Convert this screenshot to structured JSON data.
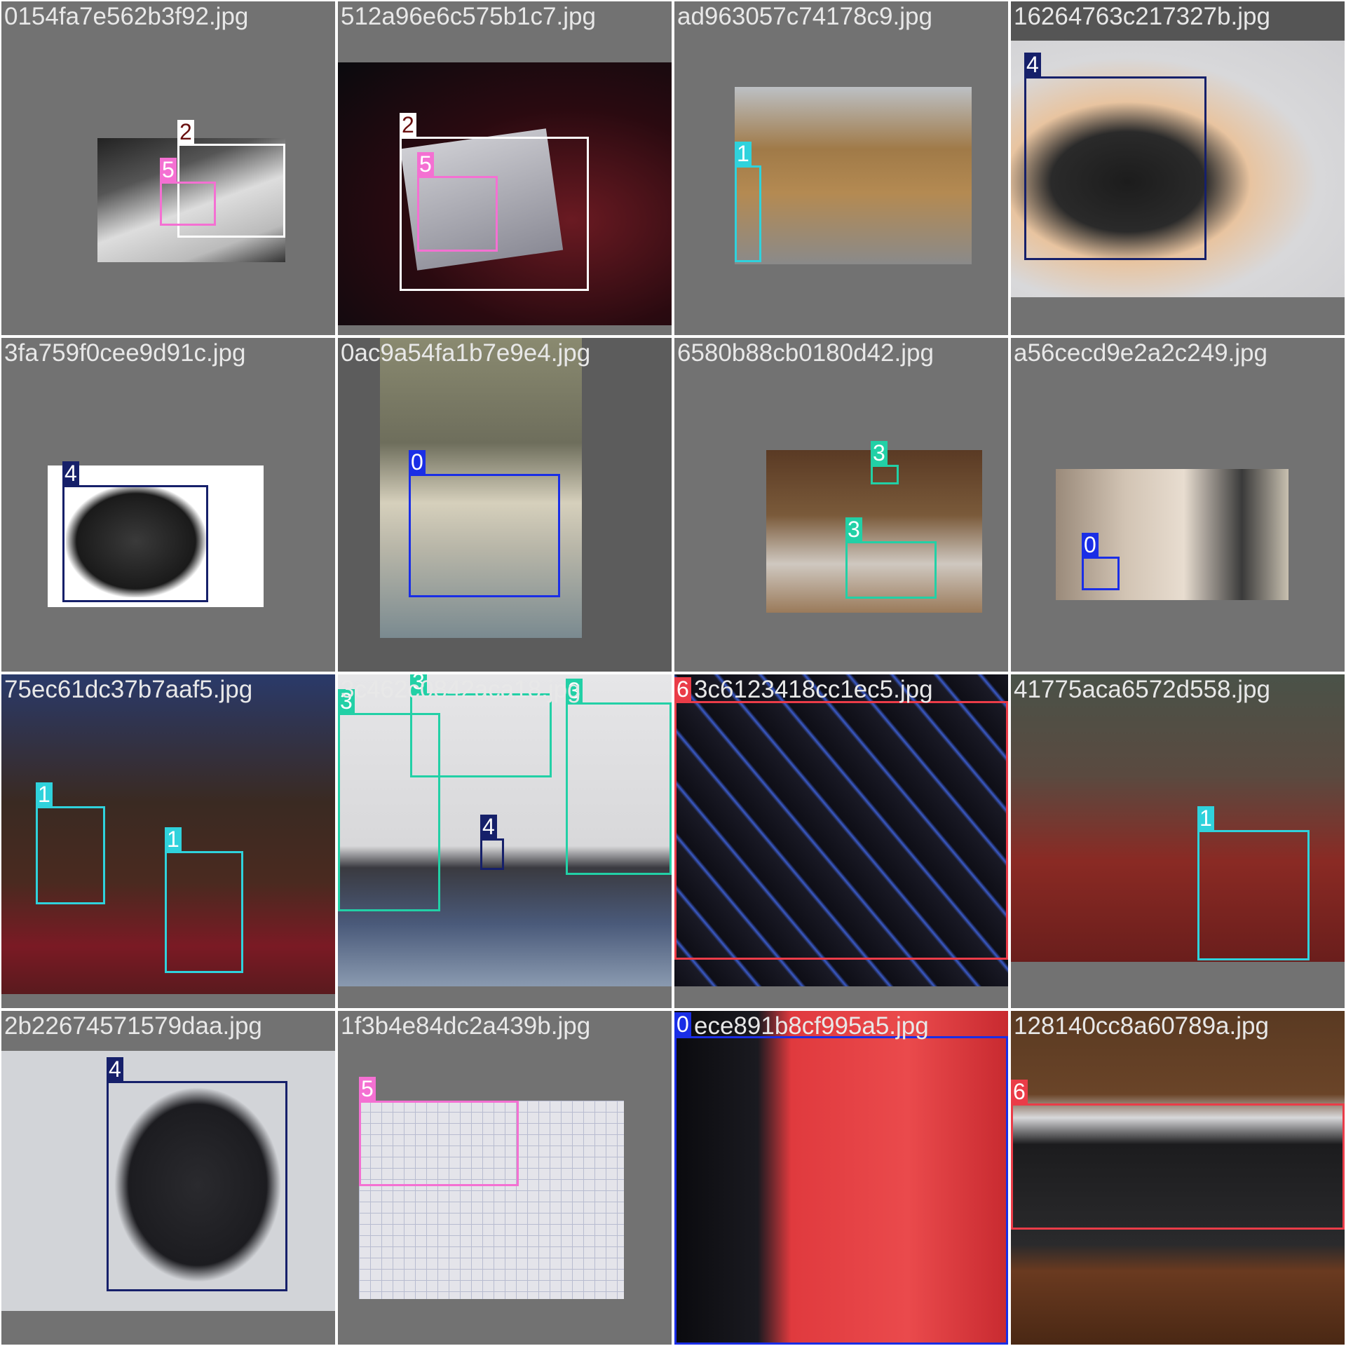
{
  "colors": {
    "0": "#1a2ee6",
    "1": "#2fd2dc",
    "2": "#ffffff",
    "3": "#22d0a6",
    "4": "#16206a",
    "5": "#f470d2",
    "6": "#ea3c48"
  },
  "tiles": [
    {
      "filename": "0154fa7e562b3f92.jpg",
      "labels": [
        "2",
        "5"
      ]
    },
    {
      "filename": "512a96e6c575b1c7.jpg",
      "labels": [
        "2",
        "5"
      ]
    },
    {
      "filename": "ad963057c74178c9.jpg",
      "labels": [
        "1"
      ]
    },
    {
      "filename": "16264763c217327b.jpg",
      "labels": [
        "4"
      ]
    },
    {
      "filename": "3fa759f0cee9d91c.jpg",
      "labels": [
        "4"
      ]
    },
    {
      "filename": "0ac9a54fa1b7e9e4.jpg",
      "labels": [
        "0"
      ]
    },
    {
      "filename": "6580b88cb0180d42.jpg",
      "labels": [
        "3",
        "3"
      ]
    },
    {
      "filename": "a56cecd9e2a2c249.jpg",
      "labels": [
        "0"
      ]
    },
    {
      "filename": "75ec61dc37b7aaf5.jpg",
      "labels": [
        "1",
        "1"
      ]
    },
    {
      "filename": "3c462c0842aca18.jpg",
      "labels": [
        "3",
        "3",
        "3",
        "4"
      ]
    },
    {
      "filename": "3c6123418cc1ec5.jpg",
      "labels": [
        "6"
      ]
    },
    {
      "filename": "41775aca6572d558.jpg",
      "labels": [
        "1"
      ]
    },
    {
      "filename": "2b22674571579daa.jpg",
      "labels": [
        "4"
      ]
    },
    {
      "filename": "1f3b4e84dc2a439b.jpg",
      "labels": [
        "5"
      ]
    },
    {
      "filename": "ece891b8cf995a5.jpg",
      "labels": [
        "0"
      ]
    },
    {
      "filename": "128140cc8a60789a.jpg",
      "labels": [
        "6"
      ]
    }
  ]
}
